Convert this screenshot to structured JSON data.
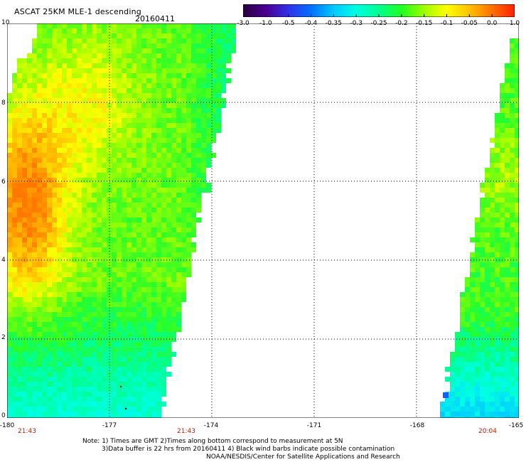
{
  "header": {
    "title": "ASCAT 25KM MLE-1 descending",
    "date": "20160411"
  },
  "colorbar": {
    "ticks": [
      "-3.0",
      "-1.0",
      "-0.5",
      "-0.4",
      "-0.35",
      "-0.3",
      "-0.25",
      "-0.2",
      "-0.15",
      "-0.1",
      "-0.05",
      "0.0",
      "1.0"
    ],
    "colors": [
      "#2a0040",
      "#4a0090",
      "#3030e8",
      "#0070ff",
      "#00c8ff",
      "#00ffe0",
      "#00ff90",
      "#20ff20",
      "#a0ff00",
      "#ffff00",
      "#ffc000",
      "#ff7000",
      "#ff2000"
    ]
  },
  "axes": {
    "y_ticks": [
      "0",
      "2",
      "4",
      "6",
      "8",
      "10"
    ],
    "x_ticks": [
      "-180",
      "-177",
      "-174",
      "-171",
      "-168",
      "-165"
    ],
    "x_range": [
      -180,
      -165
    ],
    "y_range": [
      0,
      10
    ],
    "grid": true
  },
  "time_labels": [
    "21:43",
    "21:43",
    "20:04"
  ],
  "notes": [
    "Note: 1) Times are GMT 2)Times along bottom correspond to measurement at 5N",
    "3)Data buffer is 22 hrs from 20160411 4) Black wind barbs indicate possible contamination",
    "NOAA/NESDIS/Center for Satellite Applications and Research"
  ]
}
